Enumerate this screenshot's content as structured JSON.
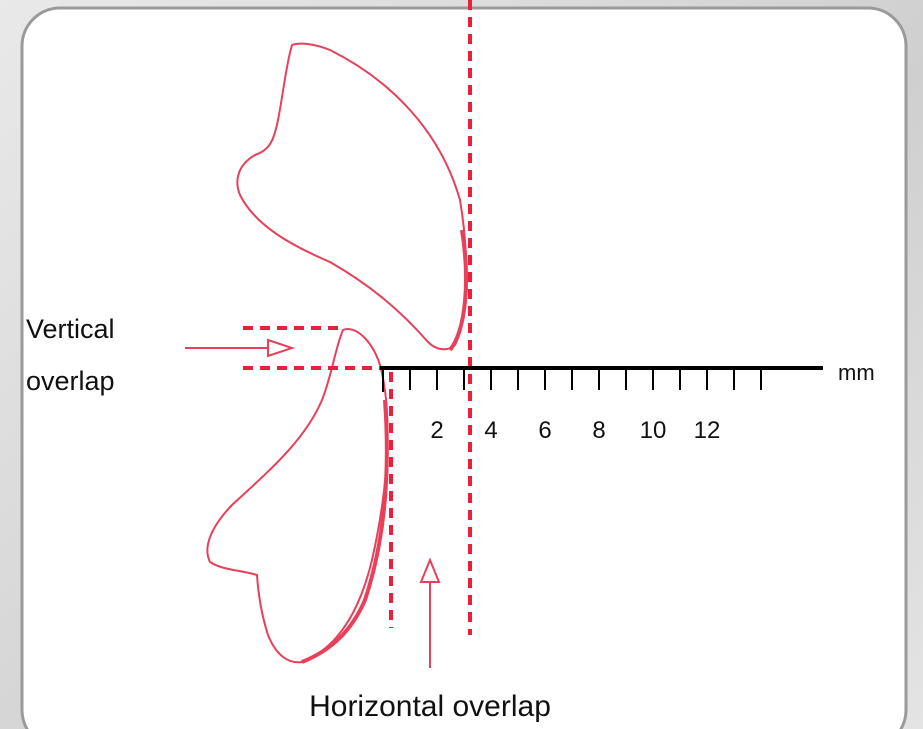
{
  "vertical_label": {
    "lines": [
      "Vertical",
      "overlap"
    ]
  },
  "horizontal_label": "Horizontal overlap",
  "scale": {
    "unit": "mm",
    "ticks": [
      2,
      4,
      6,
      8,
      10,
      12
    ]
  }
}
